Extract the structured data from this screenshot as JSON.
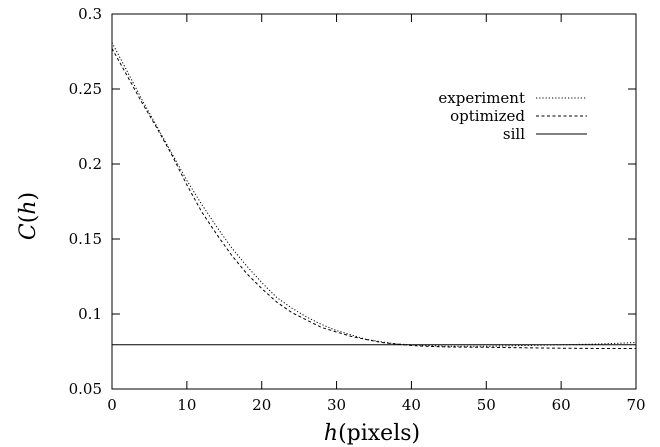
{
  "chart_data": {
    "type": "line",
    "title": "",
    "xlabel": "h(pixels)",
    "xlabel_italic": "h",
    "xlabel_rest": "(pixels)",
    "ylabel": "C(h)",
    "ylabel_func": "C",
    "ylabel_arg": "h",
    "xlim": [
      0,
      70
    ],
    "ylim": [
      0.05,
      0.3
    ],
    "x_ticks": [
      0,
      10,
      20,
      30,
      40,
      50,
      60,
      70
    ],
    "x_tick_labels": [
      "0",
      "10",
      "20",
      "30",
      "40",
      "50",
      "60",
      "70"
    ],
    "y_ticks": [
      0.05,
      0.1,
      0.15,
      0.2,
      0.25,
      0.3
    ],
    "y_tick_labels": [
      "0.05",
      "0.1",
      "0.15",
      "0.2",
      "0.25",
      "0.3"
    ],
    "grid": false,
    "legend_position": "top-right",
    "series": [
      {
        "name": "experiment",
        "style": "dotted",
        "x": [
          0,
          2,
          4,
          6,
          8,
          10,
          12,
          14,
          16,
          18,
          20,
          22,
          24,
          26,
          28,
          30,
          32,
          34,
          36,
          38,
          40,
          42,
          45,
          50,
          55,
          60,
          65,
          70
        ],
        "y": [
          0.281,
          0.262,
          0.243,
          0.225,
          0.207,
          0.189,
          0.173,
          0.158,
          0.144,
          0.132,
          0.121,
          0.111,
          0.104,
          0.098,
          0.093,
          0.089,
          0.086,
          0.083,
          0.0815,
          0.08,
          0.0795,
          0.079,
          0.0785,
          0.0785,
          0.079,
          0.0795,
          0.08,
          0.081
        ]
      },
      {
        "name": "optimized",
        "style": "dashed",
        "x": [
          0,
          2,
          4,
          6,
          8,
          10,
          12,
          14,
          16,
          18,
          20,
          22,
          24,
          26,
          28,
          30,
          32,
          34,
          36,
          38,
          40,
          42,
          45,
          50,
          55,
          60,
          65,
          70
        ],
        "y": [
          0.277,
          0.259,
          0.241,
          0.224,
          0.206,
          0.186,
          0.168,
          0.153,
          0.139,
          0.127,
          0.117,
          0.108,
          0.101,
          0.096,
          0.091,
          0.088,
          0.085,
          0.083,
          0.081,
          0.08,
          0.079,
          0.0785,
          0.078,
          0.0778,
          0.0775,
          0.0772,
          0.077,
          0.077
        ]
      },
      {
        "name": "sill",
        "style": "solid",
        "x": [
          0,
          70
        ],
        "y": [
          0.0795,
          0.0795
        ]
      }
    ]
  }
}
